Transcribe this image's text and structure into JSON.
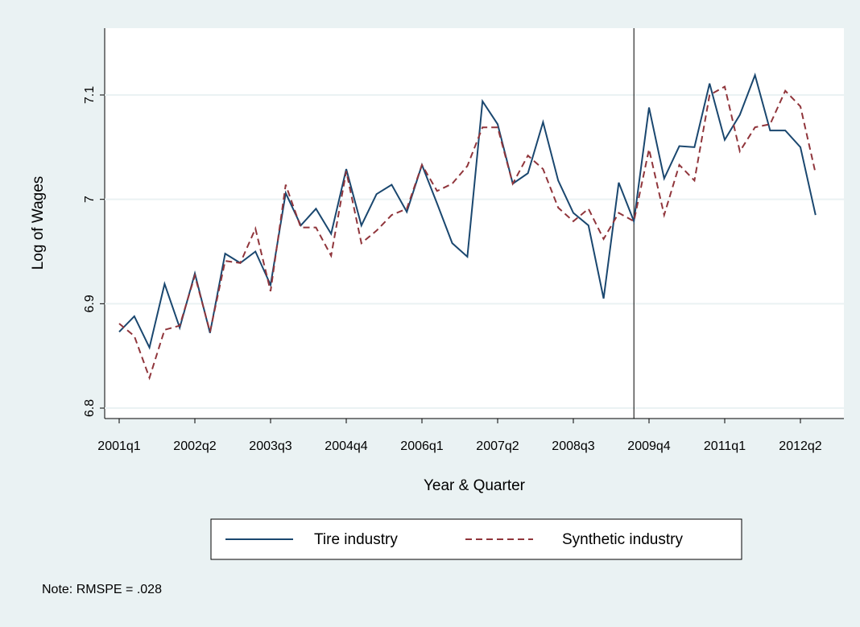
{
  "chart_data": {
    "type": "line",
    "ylabel": "Log of Wages",
    "xlabel": "Year & Quarter",
    "note": "Note: RMSPE = .028",
    "categories": [
      "2001q1",
      null,
      null,
      null,
      null,
      "2002q2",
      null,
      null,
      null,
      null,
      "2003q3",
      null,
      null,
      null,
      null,
      "2004q4",
      null,
      null,
      null,
      null,
      "2006q1",
      null,
      null,
      null,
      null,
      "2007q2",
      null,
      null,
      null,
      null,
      "2008q3",
      null,
      null,
      null,
      null,
      "2009q4",
      null,
      null,
      null,
      null,
      "2011q1",
      null,
      null,
      null,
      null,
      "2012q2",
      null
    ],
    "series": [
      {
        "name": "Tire industry",
        "color": "#1a476f",
        "style": "solid",
        "values": [
          6.873,
          6.888,
          6.858,
          6.919,
          6.877,
          6.929,
          6.872,
          6.948,
          6.939,
          6.95,
          6.918,
          7.006,
          6.975,
          6.991,
          6.967,
          7.029,
          6.975,
          7.005,
          7.014,
          6.988,
          7.033,
          6.996,
          6.958,
          6.945,
          7.094,
          7.072,
          7.015,
          7.025,
          7.074,
          7.018,
          6.987,
          6.975,
          6.905,
          7.016,
          6.979,
          7.088,
          7.02,
          7.051,
          7.05,
          7.111,
          7.057,
          7.081,
          7.119,
          7.066,
          7.066,
          7.05,
          6.985
        ]
      },
      {
        "name": "Synthetic industry",
        "color": "#90353b",
        "style": "dashed",
        "values": [
          6.881,
          6.869,
          6.829,
          6.875,
          6.879,
          6.927,
          6.873,
          6.941,
          6.939,
          6.972,
          6.912,
          7.014,
          6.973,
          6.973,
          6.946,
          7.027,
          6.958,
          6.97,
          6.985,
          6.991,
          7.033,
          7.008,
          7.015,
          7.032,
          7.069,
          7.069,
          7.015,
          7.042,
          7.029,
          6.992,
          6.979,
          6.991,
          6.962,
          6.987,
          6.979,
          7.048,
          6.985,
          7.033,
          7.018,
          7.1,
          7.108,
          7.046,
          7.069,
          7.072,
          7.104,
          7.089,
          7.025
        ]
      }
    ],
    "xline": 34,
    "ylim": [
      6.79,
      7.164
    ],
    "yticks": [
      6.8,
      6.9,
      7,
      7.1
    ],
    "grid": true,
    "legend": "bottom"
  }
}
